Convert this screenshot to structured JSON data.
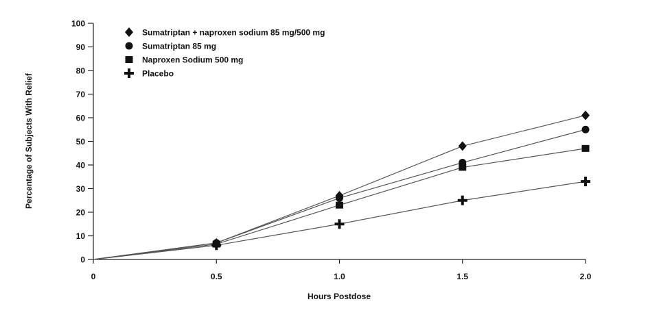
{
  "chart_data": {
    "type": "line",
    "xlabel": "Hours Postdose",
    "ylabel": "Percentage of Subjects With Relief",
    "x": [
      0,
      0.5,
      1.0,
      1.5,
      2.0
    ],
    "x_tick_labels": [
      "0",
      "0.5",
      "1.0",
      "1.5",
      "2.0"
    ],
    "xlim": [
      0,
      2.0
    ],
    "ylim": [
      0,
      100
    ],
    "y_ticks": [
      0,
      10,
      20,
      30,
      40,
      50,
      60,
      70,
      80,
      90,
      100
    ],
    "y_tick_labels": [
      "0",
      "10",
      "20",
      "30",
      "40",
      "50",
      "60",
      "70",
      "80",
      "90",
      "100"
    ],
    "grid": false,
    "legend_position": "top-left",
    "series": [
      {
        "name": "Sumatriptan + naproxen sodium 85 mg/500 mg",
        "marker": "diamond",
        "values": [
          0,
          7,
          27,
          48,
          61
        ]
      },
      {
        "name": "Sumatriptan 85 mg",
        "marker": "circle",
        "values": [
          0,
          7,
          26,
          41,
          55
        ]
      },
      {
        "name": "Naproxen Sodium 500 mg",
        "marker": "square",
        "values": [
          0,
          6.5,
          23,
          39,
          47
        ]
      },
      {
        "name": "Placebo",
        "marker": "plus",
        "values": [
          0,
          6,
          15,
          25,
          33
        ]
      }
    ]
  }
}
